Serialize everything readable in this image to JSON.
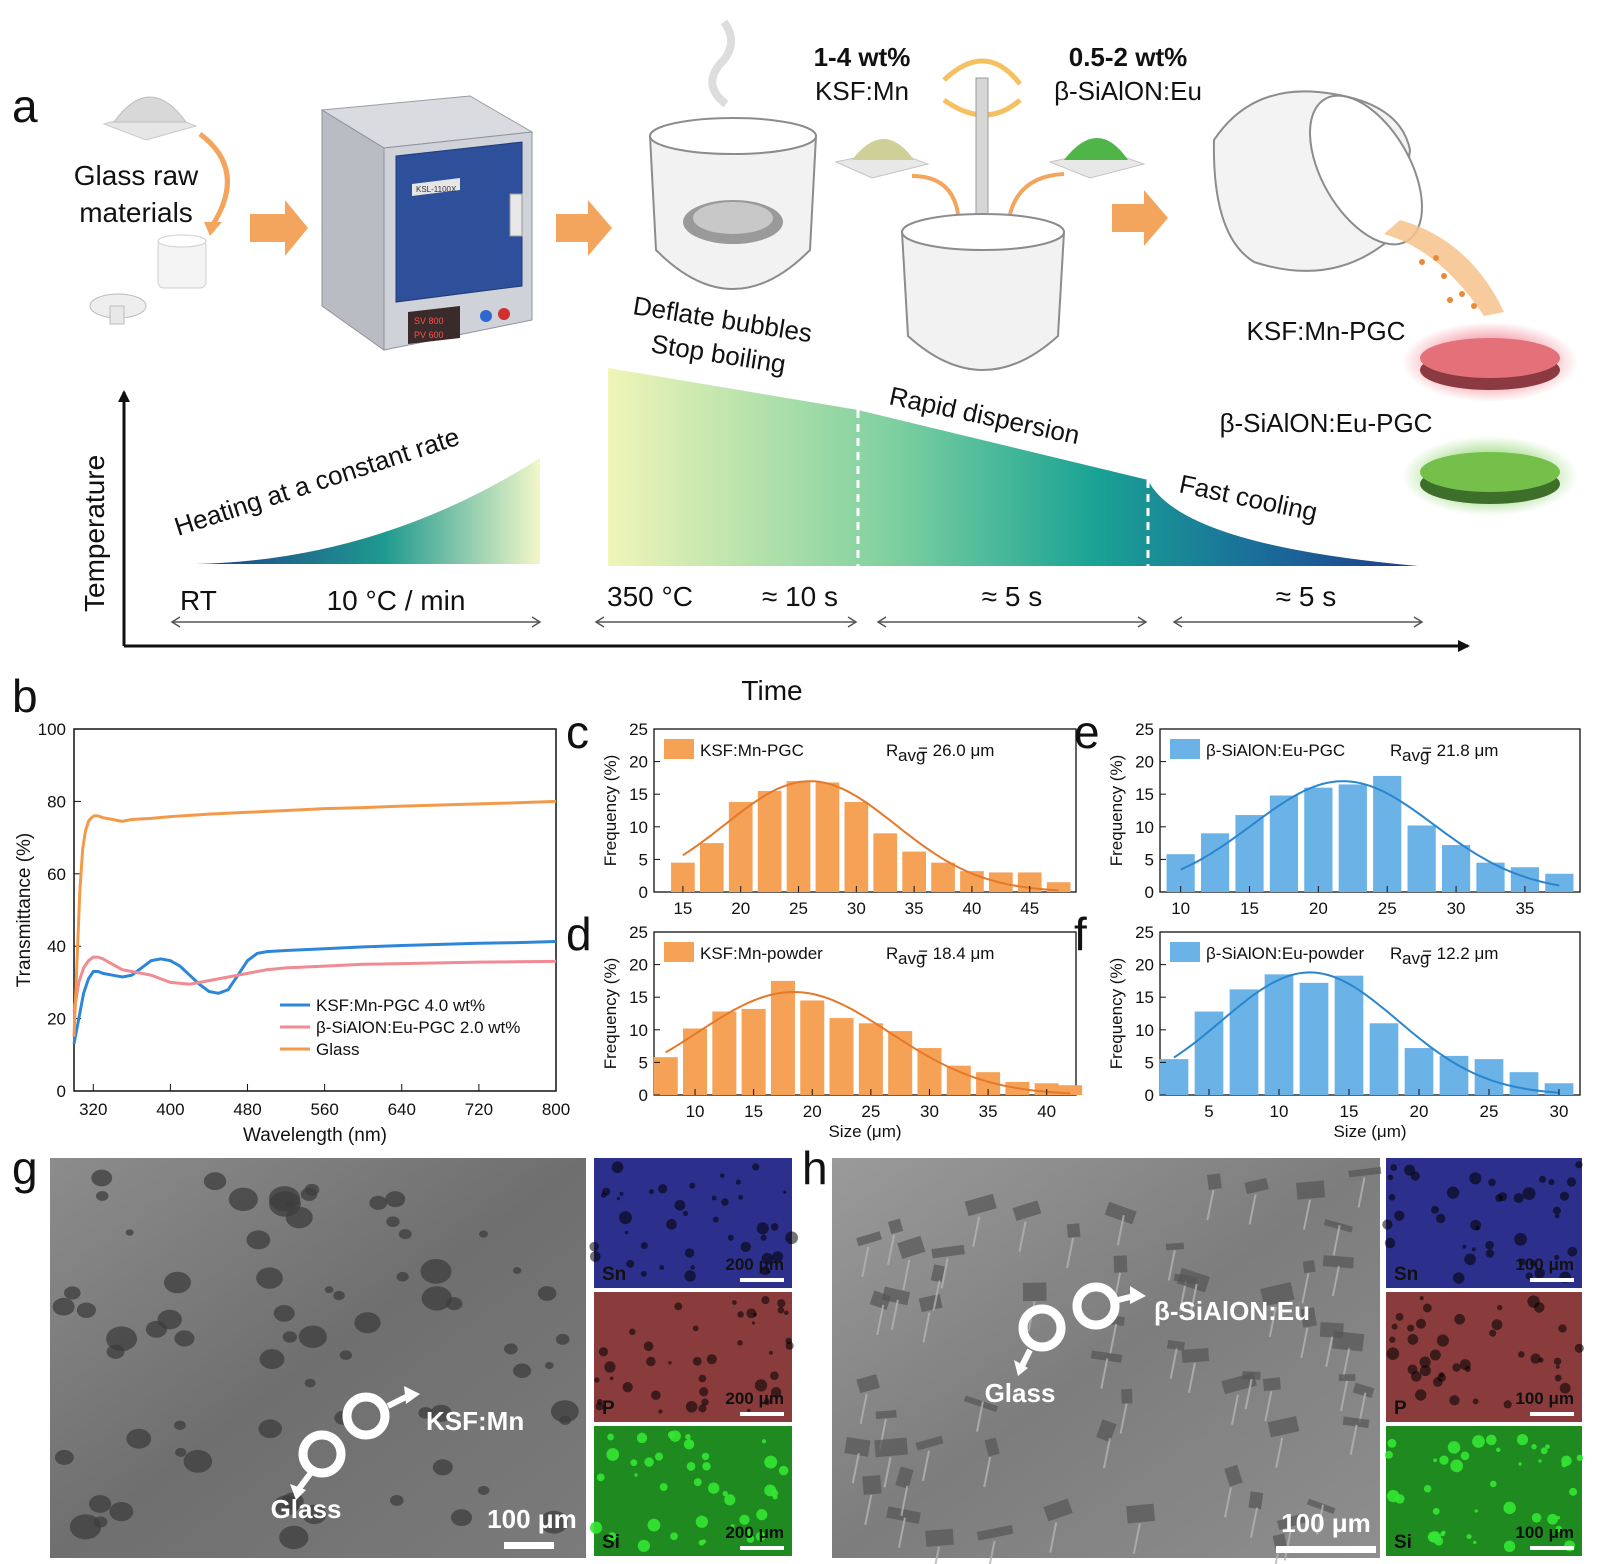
{
  "panel_labels": {
    "a": "a",
    "b": "b",
    "c": "c",
    "d": "d",
    "e": "e",
    "f": "f",
    "g": "g",
    "h": "h"
  },
  "panel_a": {
    "glass_raw_line1": "Glass raw",
    "glass_raw_line2": "materials",
    "oven_badge": "KSL-1100X",
    "oven_sv": "SV 800",
    "oven_pv": "PV 600",
    "ksf_wt": "1-4 wt%",
    "ksf_name": "KSF:Mn",
    "sialon_wt": "0.5-2 wt%",
    "sialon_name": "β-SiAlON:Eu",
    "deflate_line1": "Deflate bubbles",
    "deflate_line2": "Stop boiling",
    "heating": "Heating at a constant rate",
    "rapid": "Rapid dispersion",
    "fast": "Fast cooling",
    "ksf_pgc": "KSF:Mn-PGC",
    "sialon_pgc": "β-SiAlON:Eu-PGC",
    "y_axis": "Temperature",
    "x_axis": "Time",
    "rt": "RT",
    "rate": "10 °C / min",
    "temp350": "350 °C",
    "t10": "≈ 10 s",
    "t5a": "≈ 5 s",
    "t5b": "≈ 5 s",
    "colors": {
      "arrow": "#f3a55d",
      "ksf_disc": "#e4707a",
      "sialon_disc": "#74c04a",
      "oven_blue": "#2e4f9a"
    }
  },
  "sem_g": {
    "ksf_label": "KSF:Mn",
    "glass_label": "Glass",
    "scale_main": "100 μm",
    "maps": [
      {
        "element": "Sn",
        "scale": "200 μm",
        "color": "#2c2f8c"
      },
      {
        "element": "P",
        "scale": "200 μm",
        "color": "#8a3c3c"
      },
      {
        "element": "Si",
        "scale": "200 μm",
        "color": "#1f8a1f"
      }
    ]
  },
  "sem_h": {
    "sialon_label": "β-SiAlON:Eu",
    "glass_label": "Glass",
    "scale_main": "100 μm",
    "maps": [
      {
        "element": "Sn",
        "scale": "100 μm",
        "color": "#2c2f8c"
      },
      {
        "element": "P",
        "scale": "100 μm",
        "color": "#8a3c3c"
      },
      {
        "element": "Si",
        "scale": "100 μm",
        "color": "#1f8a1f"
      }
    ]
  },
  "chart_data": [
    {
      "id": "b",
      "type": "line",
      "xlabel": "Wavelength (nm)",
      "ylabel": "Transmittance (%)",
      "xlim": [
        300,
        800
      ],
      "ylim": [
        0,
        100
      ],
      "xticks": [
        320,
        400,
        480,
        560,
        640,
        720,
        800
      ],
      "yticks": [
        0,
        20,
        40,
        60,
        80,
        100
      ],
      "legend_position": "bottom-right",
      "series": [
        {
          "name": "KSF:Mn-PGC 4.0 wt%",
          "color": "#2e86d9",
          "x": [
            300,
            305,
            310,
            315,
            320,
            325,
            330,
            340,
            350,
            360,
            370,
            380,
            390,
            400,
            410,
            420,
            430,
            440,
            450,
            460,
            470,
            480,
            490,
            500,
            520,
            560,
            600,
            640,
            680,
            720,
            760,
            800
          ],
          "y": [
            13,
            20,
            27,
            31,
            33,
            33,
            32.5,
            32,
            31.5,
            32,
            34,
            36,
            36.5,
            36,
            34.5,
            32,
            29.5,
            27.5,
            27,
            28,
            32,
            36,
            38,
            38.5,
            38.8,
            39.3,
            39.8,
            40.2,
            40.5,
            40.8,
            41,
            41.3
          ]
        },
        {
          "name": "β-SiAlON:Eu-PGC 2.0 wt%",
          "color": "#f08a93",
          "x": [
            300,
            305,
            310,
            315,
            320,
            325,
            330,
            340,
            350,
            360,
            380,
            400,
            420,
            440,
            460,
            480,
            500,
            520,
            560,
            600,
            640,
            680,
            720,
            760,
            800
          ],
          "y": [
            22,
            30,
            34,
            36,
            37,
            37,
            36.5,
            35,
            33.5,
            33,
            32,
            30,
            29.5,
            30.5,
            31.5,
            32.5,
            33.5,
            34,
            34.5,
            35,
            35.2,
            35.4,
            35.6,
            35.7,
            35.8
          ]
        },
        {
          "name": "Glass",
          "color": "#f39a4a",
          "x": [
            300,
            303,
            306,
            309,
            312,
            315,
            318,
            321,
            325,
            330,
            340,
            350,
            360,
            380,
            400,
            440,
            480,
            520,
            560,
            600,
            640,
            680,
            720,
            760,
            800
          ],
          "y": [
            15,
            35,
            55,
            67,
            72,
            74.5,
            75.5,
            76,
            76,
            75.5,
            75,
            74.5,
            75,
            75.3,
            75.8,
            76.5,
            77,
            77.5,
            78,
            78.3,
            78.7,
            79,
            79.3,
            79.6,
            80
          ]
        }
      ]
    },
    {
      "id": "c",
      "type": "bar",
      "legend": "KSF:Mn-PGC",
      "annotation_R": "R",
      "annotation_sub": "avg",
      "annotation_value": " = 26.0 μm",
      "ylabel": "Frequency (%)",
      "xlabel": "",
      "xlim": [
        12.5,
        49
      ],
      "ylim": [
        0,
        25
      ],
      "xticks": [
        15,
        20,
        25,
        30,
        35,
        40,
        45
      ],
      "yticks": [
        0,
        5,
        10,
        15,
        20,
        25
      ],
      "bar_color": "#f5a257",
      "fit_color": "#e6782a",
      "x": [
        15,
        17.5,
        20,
        22.5,
        25,
        27.5,
        30,
        32.5,
        35,
        37.5,
        40,
        42.5,
        45,
        47.5
      ],
      "values": [
        4.5,
        7.5,
        13.8,
        15.5,
        17,
        16.8,
        13.8,
        9,
        6.2,
        4.5,
        3.2,
        3,
        3,
        1.5
      ],
      "fit": {
        "mean": 26.0,
        "sigma": 7.4,
        "amp": 17
      }
    },
    {
      "id": "d",
      "type": "bar",
      "legend": "KSF:Mn-powder",
      "annotation_R": "R",
      "annotation_sub": "avg",
      "annotation_value": " = 18.4 μm",
      "ylabel": "Frequency (%)",
      "xlabel": "Size (μm)",
      "xlim": [
        6.5,
        42.5
      ],
      "ylim": [
        0,
        25
      ],
      "xticks": [
        10,
        15,
        20,
        25,
        30,
        35,
        40
      ],
      "yticks": [
        0,
        5,
        10,
        15,
        20,
        25
      ],
      "bar_color": "#f5a257",
      "fit_color": "#e6782a",
      "x": [
        7.5,
        10,
        12.5,
        15,
        17.5,
        20,
        22.5,
        25,
        27.5,
        30,
        32.5,
        35,
        37.5,
        40,
        42
      ],
      "values": [
        5.8,
        10.2,
        12.8,
        13.2,
        17.5,
        14.5,
        11.8,
        11,
        9.8,
        7.2,
        4.5,
        3.5,
        2,
        1.8,
        1.5
      ],
      "fit": {
        "mean": 18.4,
        "sigma": 8.2,
        "amp": 15.8
      }
    },
    {
      "id": "e",
      "type": "bar",
      "legend": "β-SiAlON:Eu-PGC",
      "annotation_R": "R",
      "annotation_sub": "avg",
      "annotation_value": " = 21.8 μm",
      "ylabel": "Frequency (%)",
      "xlabel": "",
      "xlim": [
        8.5,
        39
      ],
      "ylim": [
        0,
        25
      ],
      "xticks": [
        10,
        15,
        20,
        25,
        30,
        35
      ],
      "yticks": [
        0,
        5,
        10,
        15,
        20,
        25
      ],
      "bar_color": "#6bb3e6",
      "fit_color": "#2a85cf",
      "x": [
        10,
        12.5,
        15,
        17.5,
        20,
        22.5,
        25,
        27.5,
        30,
        32.5,
        35,
        37.5
      ],
      "values": [
        5.8,
        9,
        11.8,
        14.8,
        16,
        16.5,
        17.8,
        10.2,
        7.2,
        4.5,
        3.8,
        2.8
      ],
      "fit": {
        "mean": 21.8,
        "sigma": 6.6,
        "amp": 17
      }
    },
    {
      "id": "f",
      "type": "bar",
      "legend": "β-SiAlON:Eu-powder",
      "annotation_R": "R",
      "annotation_sub": "avg",
      "annotation_value": " = 12.2 μm",
      "ylabel": "Frequency (%)",
      "xlabel": "Size (μm)",
      "xlim": [
        1.5,
        31.5
      ],
      "ylim": [
        0,
        25
      ],
      "xticks": [
        5,
        10,
        15,
        20,
        25,
        30
      ],
      "yticks": [
        0,
        5,
        10,
        15,
        20,
        25
      ],
      "bar_color": "#6bb3e6",
      "fit_color": "#2a85cf",
      "x": [
        2.5,
        5,
        7.5,
        10,
        12.5,
        15,
        17.5,
        20,
        22.5,
        25,
        27.5,
        30
      ],
      "values": [
        5.5,
        12.8,
        16.2,
        18.5,
        17.2,
        18.3,
        11,
        7.2,
        6,
        5.5,
        3.5,
        1.8
      ],
      "fit": {
        "mean": 12.2,
        "sigma": 6.3,
        "amp": 18.8
      }
    }
  ]
}
